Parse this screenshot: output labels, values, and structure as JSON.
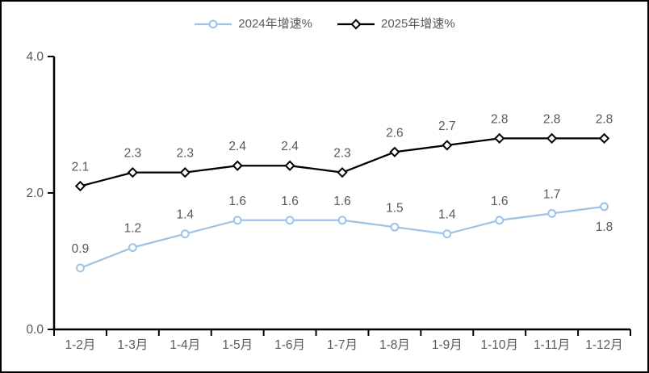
{
  "window": {
    "background": "#ffffff",
    "border_color": "#000000"
  },
  "chart_data": {
    "type": "line",
    "title": "",
    "xlabel": "",
    "ylabel": "",
    "categories": [
      "1-2月",
      "1-3月",
      "1-4月",
      "1-5月",
      "1-6月",
      "1-7月",
      "1-8月",
      "1-9月",
      "1-10月",
      "1-11月",
      "1-12月"
    ],
    "series": [
      {
        "name": "2024年增速%",
        "values": [
          0.9,
          1.2,
          1.4,
          1.6,
          1.6,
          1.6,
          1.5,
          1.4,
          1.6,
          1.7,
          1.8
        ],
        "color": "#9DC3E6",
        "marker": "circle",
        "label_below_indices": [
          10
        ]
      },
      {
        "name": "2025年增速%",
        "values": [
          2.1,
          2.3,
          2.3,
          2.4,
          2.4,
          2.3,
          2.6,
          2.7,
          2.8,
          2.8,
          2.8
        ],
        "color": "#000000",
        "marker": "diamond",
        "label_below_indices": []
      }
    ],
    "ylim": [
      0,
      4
    ],
    "yticks": [
      {
        "value": 0,
        "label": "0.0"
      },
      {
        "value": 2,
        "label": "2.0"
      },
      {
        "value": 4,
        "label": "4.0"
      }
    ],
    "grid": false,
    "legend_position": "top",
    "colors": {
      "axis": "#000000",
      "tick_text": "#595959",
      "data_label_text": "#595959"
    }
  }
}
